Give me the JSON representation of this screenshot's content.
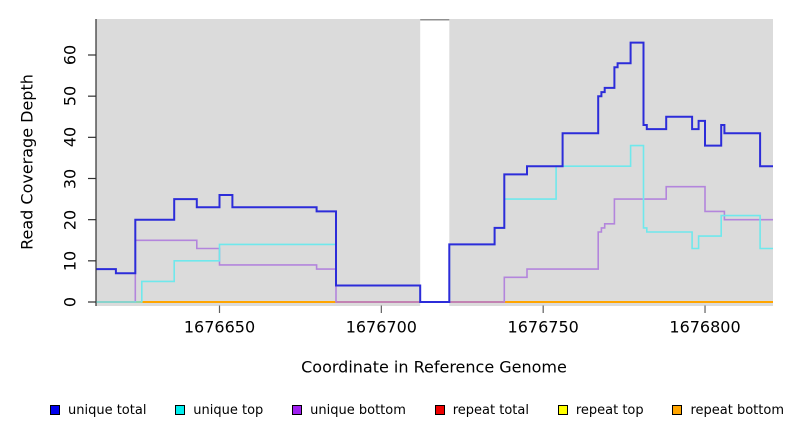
{
  "chart_data": {
    "type": "line",
    "subtype": "step",
    "title": "",
    "xlabel": "Coordinate in Reference Genome",
    "ylabel": "Read Coverage Depth",
    "xlim": [
      1676612,
      1676821
    ],
    "ylim": [
      0,
      69
    ],
    "x_ticks": [
      1676650,
      1676700,
      1676750,
      1676800
    ],
    "y_ticks": [
      0,
      10,
      20,
      30,
      40,
      50,
      60
    ],
    "grid": false,
    "plot_background": "#DBDBDB",
    "outer_background": "#FFFFFF",
    "gap_region": {
      "x_start": 1676712,
      "x_end": 1676721,
      "fill": "#FFFFFF",
      "top_border_color": "#909090"
    },
    "axis_color": "#303030",
    "series": [
      {
        "name": "repeat top",
        "line_color": "#FFFF00",
        "points": [
          [
            1676612,
            0
          ],
          [
            1676821,
            0
          ]
        ]
      },
      {
        "name": "repeat bottom",
        "line_color": "#FFA500",
        "points": [
          [
            1676612,
            0
          ],
          [
            1676821,
            0
          ]
        ]
      },
      {
        "name": "repeat total",
        "line_color": "#E0506E",
        "points": [
          [
            1676686,
            0
          ],
          [
            1676738,
            0
          ]
        ]
      },
      {
        "name": "unique bottom",
        "line_color": "#B385DC",
        "points": [
          [
            1676612,
            0
          ],
          [
            1676624,
            15
          ],
          [
            1676643,
            13
          ],
          [
            1676650,
            9
          ],
          [
            1676680,
            8
          ],
          [
            1676686,
            0
          ],
          [
            1676738,
            6
          ],
          [
            1676745,
            8
          ],
          [
            1676767,
            17
          ],
          [
            1676768,
            18
          ],
          [
            1676769,
            19
          ],
          [
            1676772,
            25
          ],
          [
            1676788,
            28
          ],
          [
            1676800,
            22
          ],
          [
            1676806,
            20
          ],
          [
            1676821,
            20
          ]
        ]
      },
      {
        "name": "unique top",
        "line_color": "#6FE8EC",
        "points": [
          [
            1676612,
            0
          ],
          [
            1676626,
            5
          ],
          [
            1676636,
            10
          ],
          [
            1676650,
            14
          ],
          [
            1676686,
            4
          ],
          [
            1676712,
            0
          ],
          [
            1676721,
            14
          ],
          [
            1676735,
            18
          ],
          [
            1676738,
            25
          ],
          [
            1676754,
            33
          ],
          [
            1676777,
            38
          ],
          [
            1676781,
            18
          ],
          [
            1676782,
            17
          ],
          [
            1676796,
            13
          ],
          [
            1676798,
            16
          ],
          [
            1676805,
            21
          ],
          [
            1676817,
            13
          ],
          [
            1676821,
            13
          ]
        ]
      },
      {
        "name": "unique total",
        "line_color": "#2C2CD9",
        "points": [
          [
            1676612,
            8
          ],
          [
            1676618,
            7
          ],
          [
            1676624,
            20
          ],
          [
            1676636,
            25
          ],
          [
            1676643,
            23
          ],
          [
            1676650,
            26
          ],
          [
            1676654,
            23
          ],
          [
            1676680,
            22
          ],
          [
            1676686,
            4
          ],
          [
            1676712,
            0
          ],
          [
            1676721,
            14
          ],
          [
            1676735,
            18
          ],
          [
            1676738,
            31
          ],
          [
            1676745,
            33
          ],
          [
            1676756,
            41
          ],
          [
            1676767,
            50
          ],
          [
            1676768,
            51
          ],
          [
            1676769,
            52
          ],
          [
            1676772,
            57
          ],
          [
            1676773,
            58
          ],
          [
            1676777,
            63
          ],
          [
            1676781,
            43
          ],
          [
            1676782,
            42
          ],
          [
            1676788,
            45
          ],
          [
            1676796,
            42
          ],
          [
            1676798,
            44
          ],
          [
            1676800,
            38
          ],
          [
            1676805,
            43
          ],
          [
            1676806,
            41
          ],
          [
            1676817,
            33
          ],
          [
            1676821,
            33
          ]
        ]
      }
    ],
    "legend": {
      "position": "bottom",
      "items": [
        {
          "label": "unique total",
          "color": "#0000EE"
        },
        {
          "label": "unique top",
          "color": "#00EEEE"
        },
        {
          "label": "unique bottom",
          "color": "#A020F0"
        },
        {
          "label": "repeat total",
          "color": "#EE0000"
        },
        {
          "label": "repeat top",
          "color": "#FFFF00"
        },
        {
          "label": "repeat bottom",
          "color": "#FFA500"
        }
      ]
    }
  }
}
